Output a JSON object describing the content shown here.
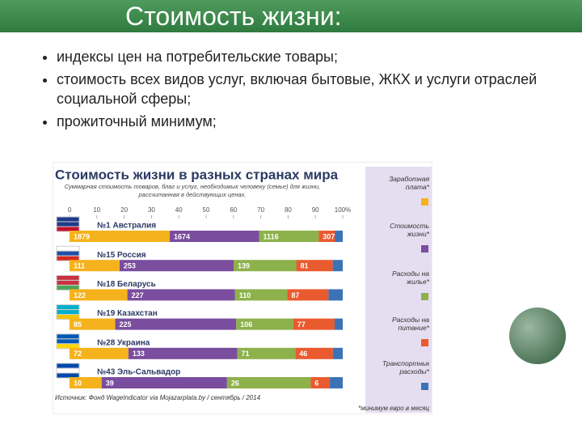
{
  "header": {
    "title": "Стоимость жизни:"
  },
  "bullets": [
    "индексы цен на потребительские товары;",
    "стоимость всех видов услуг, включая бытовые, ЖКХ и услуги отраслей социальной сферы;",
    "прожиточный минимум;"
  ],
  "chart_data": {
    "type": "bar",
    "orientation": "horizontal",
    "stacked": "percent",
    "title": "Стоимость жизни в разных странах мира",
    "subtitle": "Суммарная стоимость товаров, благ и услуг, необходимых человеку (семье) для жизни, рассчитанная в действующих ценах.",
    "source": "Источник: Фонд WageIndicator via Mojazarplata.by / сентябрь / 2014",
    "note": "*минимум евро в месяц",
    "categories": [
      "№1 Австралия",
      "№15 Россия",
      "№18 Беларусь",
      "№19 Казахстан",
      "№28 Украина",
      "№43 Эль-Сальвадор"
    ],
    "xlim": [
      0,
      100
    ],
    "xticks": [
      0,
      10,
      20,
      30,
      40,
      50,
      60,
      70,
      80,
      90,
      {
        "value": 100,
        "label": "100%"
      }
    ],
    "series": [
      {
        "name": "Заработная плата*",
        "color": "#f5b21c",
        "data_labels": true,
        "values": [
          1879,
          111,
          122,
          85,
          72,
          10
        ]
      },
      {
        "name": "Стоимость жизни*",
        "color": "#7a4d9e",
        "data_labels": true,
        "values": [
          1674,
          253,
          227,
          225,
          133,
          39
        ]
      },
      {
        "name": "Расходы на жилье*",
        "color": "#8db14b",
        "data_labels": true,
        "values": [
          1116,
          139,
          110,
          106,
          71,
          26
        ]
      },
      {
        "name": "Расходы на питание*",
        "color": "#ea5a2f",
        "data_labels": true,
        "values": [
          307,
          81,
          87,
          77,
          46,
          6
        ]
      },
      {
        "name": "Транспортные расходы*",
        "color": "#3c73b7",
        "data_labels": false,
        "values": [
          144,
          22,
          30,
          15,
          12,
          4
        ]
      }
    ]
  }
}
